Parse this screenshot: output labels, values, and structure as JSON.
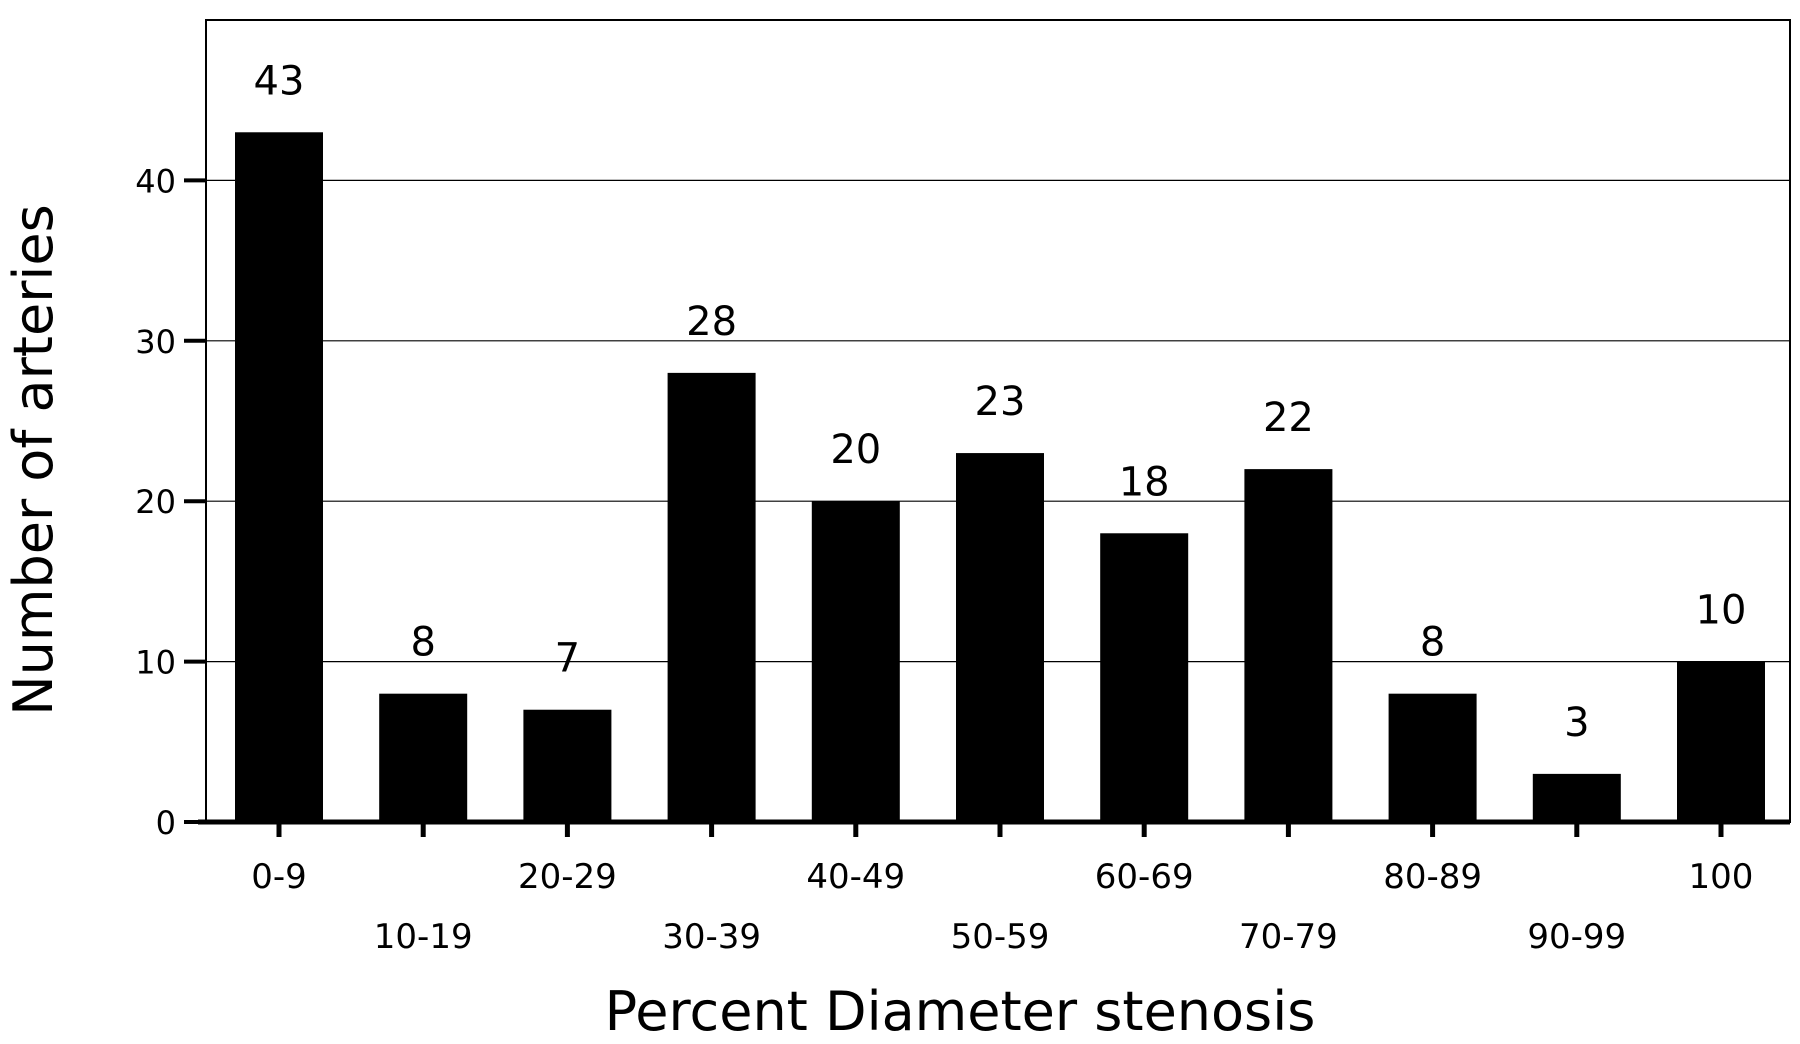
{
  "chart_data": {
    "type": "bar",
    "title": "",
    "xlabel": "Percent Diameter stenosis",
    "ylabel": "Number of arteries",
    "categories": [
      "0-9",
      "10-19",
      "20-29",
      "30-39",
      "40-49",
      "50-59",
      "60-69",
      "70-79",
      "80-89",
      "90-99",
      "100"
    ],
    "values": [
      43,
      8,
      7,
      28,
      20,
      23,
      18,
      22,
      8,
      3,
      10
    ],
    "data_labels": [
      "43",
      "8",
      "7",
      "28",
      "20",
      "23",
      "18",
      "22",
      "8",
      "3",
      "10"
    ],
    "ylim": [
      0,
      50
    ],
    "yticks": [
      0,
      10,
      20,
      30,
      40
    ],
    "ytick_labels": [
      "0",
      "10",
      "20",
      "30",
      "40"
    ],
    "grid": true,
    "legend": "none",
    "colors": {
      "bar": "#000000",
      "grid": "#000000",
      "axis": "#000000"
    }
  }
}
